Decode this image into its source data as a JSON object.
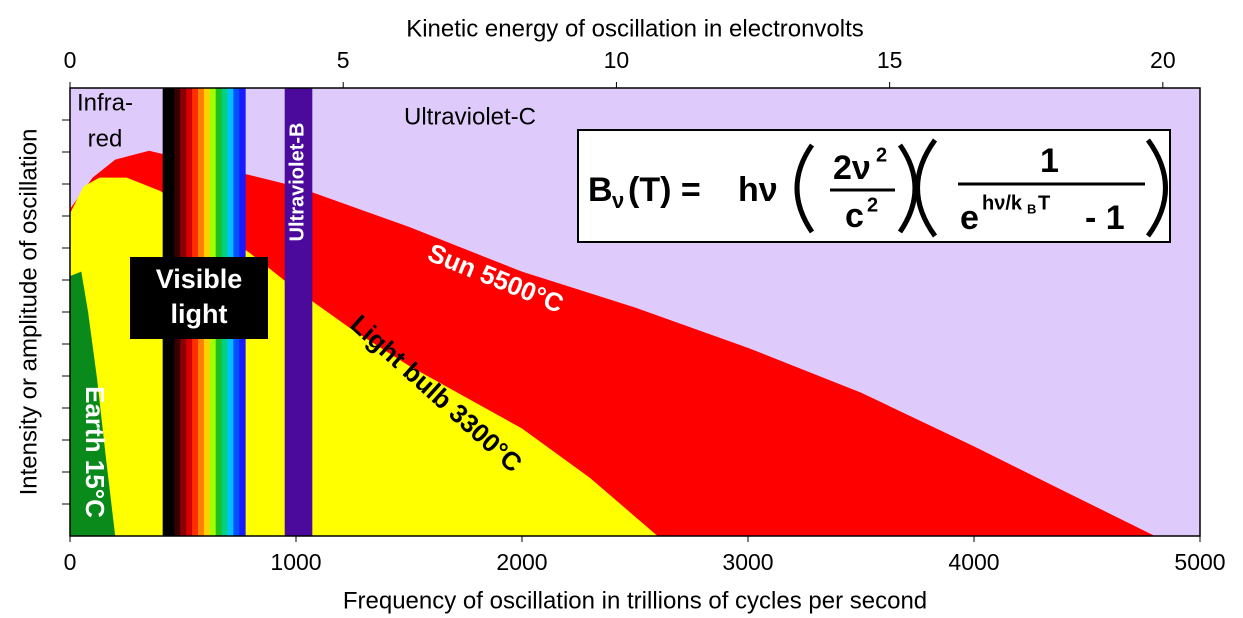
{
  "chart_data": {
    "type": "area",
    "title_top": "Kinetic energy of oscillation in electronvolts",
    "xlabel": "Frequency of oscillation in trillions of cycles per second",
    "ylabel": "Intensity or amplitude of oscillation",
    "xlim": [
      0,
      5000
    ],
    "xticks": [
      0,
      1000,
      2000,
      3000,
      4000,
      5000
    ],
    "x2lim": [
      0,
      20.68
    ],
    "x2ticks": [
      0,
      5,
      10,
      15,
      20
    ],
    "ylim": [
      0,
      1
    ],
    "background": "#dfcbfb",
    "series": [
      {
        "name": "Sun 5500°C",
        "color": "#ff0000",
        "x": [
          0,
          100,
          200,
          350,
          600,
          1000,
          1500,
          2000,
          2500,
          3000,
          3500,
          4000,
          4400,
          4800
        ],
        "values": [
          0.73,
          0.8,
          0.84,
          0.86,
          0.83,
          0.78,
          0.69,
          0.59,
          0.51,
          0.42,
          0.32,
          0.2,
          0.1,
          0
        ]
      },
      {
        "name": "Light bulb 3300°C",
        "color": "#ffff00",
        "x": [
          0,
          60,
          130,
          250,
          400,
          600,
          800,
          1000,
          1250,
          1500,
          1750,
          2000,
          2300,
          2600
        ],
        "values": [
          0.72,
          0.78,
          0.8,
          0.8,
          0.77,
          0.7,
          0.63,
          0.55,
          0.46,
          0.38,
          0.31,
          0.24,
          0.13,
          0
        ]
      },
      {
        "name": "Earth 15°C",
        "color": "#0a8a1a",
        "x": [
          0,
          50,
          80,
          120,
          160,
          200
        ],
        "values": [
          0.58,
          0.59,
          0.5,
          0.35,
          0.17,
          0
        ]
      }
    ],
    "bands": [
      {
        "name": "Visible light",
        "xrange": [
          410,
          775
        ],
        "colors": [
          "#000000",
          "#000000",
          "#3a0000",
          "#8b0000",
          "#d40000",
          "#ff3000",
          "#ff8000",
          "#ffd000",
          "#a0ff00",
          "#20c020",
          "#00d080",
          "#00c0ff",
          "#0050ff",
          "#1a1aff"
        ]
      },
      {
        "name": "Ultraviolet-B",
        "xrange": [
          950,
          1070
        ],
        "colors": [
          "#4b0a9c"
        ]
      }
    ],
    "region_labels": {
      "infrared": [
        "Infra-",
        "red"
      ],
      "visible": [
        "Visible",
        "light"
      ],
      "uvc": "Ultraviolet-C"
    },
    "formula": {
      "B": "B",
      "nu": "ν",
      "T": "(T) =",
      "hnu": "hν",
      "num": "2ν",
      "sq": "2",
      "c": "c",
      "one": "1",
      "e": "e",
      "exp": "hν/k",
      "kB": "B",
      "expT": "T",
      "minus": "- 1"
    }
  }
}
